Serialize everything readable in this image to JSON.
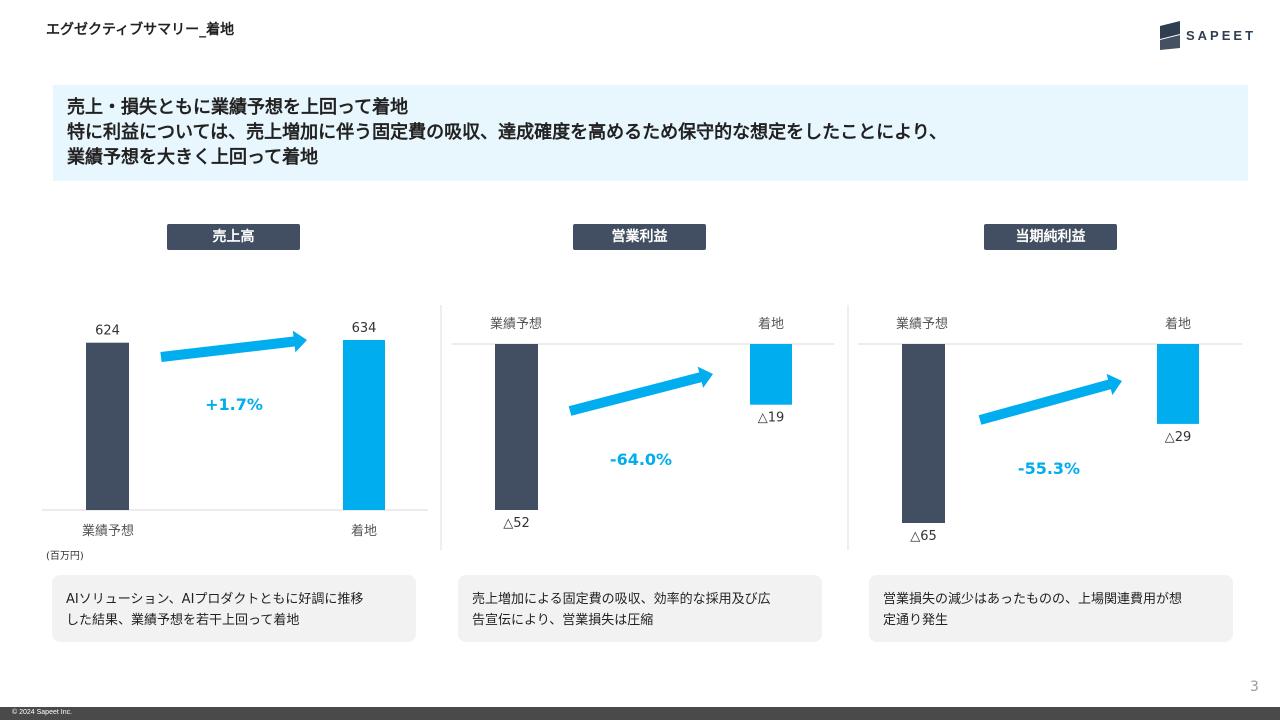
{
  "page": {
    "title": "エグゼクティブサマリー_着地",
    "logo_text": "SAPEET",
    "page_number": "3",
    "copyright": "© 2024 Sapeet Inc."
  },
  "headline": {
    "lines": [
      "売上・損失ともに業績予想を上回って着地",
      "特に利益については、売上増加に伴う固定費の吸収、達成確度を高めるため保守的な想定をしたことにより、",
      "業績予想を大きく上回って着地"
    ]
  },
  "unit_label": "(百万円)",
  "colors": {
    "forecast": "#424f62",
    "actual": "#00aeef",
    "arrow": "#00aeef",
    "change_text": "#00aeef"
  },
  "chart_data": [
    {
      "type": "bar",
      "title": "売上高",
      "categories": [
        "業績予想",
        "着地"
      ],
      "values": [
        624,
        634
      ],
      "value_labels": [
        "624",
        "634"
      ],
      "change_label": "+1.7%",
      "comment": [
        "AIソリューション、AIプロダクトともに好調に推移",
        "した結果、業績予想を若干上回って着地"
      ]
    },
    {
      "type": "bar",
      "title": "営業利益",
      "categories": [
        "業績予想",
        "着地"
      ],
      "values": [
        -52,
        -19
      ],
      "value_labels": [
        "△52",
        "△19"
      ],
      "change_label": "-64.0%",
      "comment": [
        "売上増加による固定費の吸収、効率的な採用及び広",
        "告宣伝により、営業損失は圧縮"
      ]
    },
    {
      "type": "bar",
      "title": "当期純利益",
      "categories": [
        "業績予想",
        "着地"
      ],
      "values": [
        -65,
        -29
      ],
      "value_labels": [
        "△65",
        "△29"
      ],
      "change_label": "-55.3%",
      "comment": [
        "営業損失の減少はあったものの、上場関連費用が想",
        "定通り発生"
      ]
    }
  ]
}
